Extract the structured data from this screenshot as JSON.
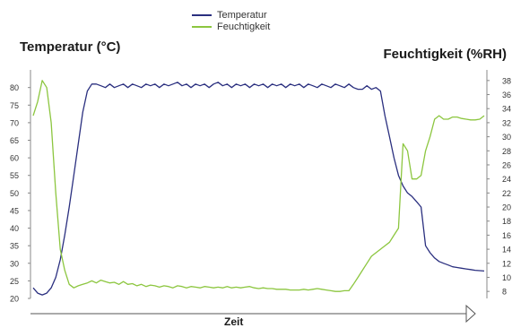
{
  "chart_data": {
    "type": "line",
    "title": "",
    "xlabel": "Zeit",
    "ylabel_left": "Temperatur (°C)",
    "ylabel_right": "Feuchtigkeit (%RH)",
    "legend_position": "top-center",
    "grid": false,
    "x_ticks_shown": false,
    "ylim_left": [
      20,
      84
    ],
    "ylim_right": [
      7,
      39
    ],
    "yticks_left": [
      "20",
      "25",
      "30",
      "35",
      "40",
      "45",
      "50",
      "55",
      "60",
      "65",
      "70",
      "75",
      "80"
    ],
    "yticks_right": [
      "8",
      "10",
      "12",
      "14",
      "16",
      "18",
      "20",
      "22",
      "24",
      "26",
      "28",
      "30",
      "32",
      "34",
      "36",
      "38"
    ],
    "series": [
      {
        "name": "Temperatur",
        "color": "#2a2f7f",
        "axis": "left",
        "x": [
          0,
          1,
          2,
          3,
          4,
          5,
          6,
          7,
          8,
          9,
          10,
          11,
          12,
          13,
          14,
          15,
          16,
          17,
          18,
          19,
          20,
          21,
          22,
          23,
          24,
          25,
          26,
          27,
          28,
          29,
          30,
          31,
          32,
          33,
          34,
          35,
          36,
          37,
          38,
          39,
          40,
          41,
          42,
          43,
          44,
          45,
          46,
          47,
          48,
          49,
          50,
          51,
          52,
          53,
          54,
          55,
          56,
          57,
          58,
          59,
          60,
          61,
          62,
          63,
          64,
          65,
          66,
          67,
          68,
          69,
          70,
          71,
          72,
          73,
          74,
          75,
          76,
          77,
          78,
          79,
          80,
          81,
          82,
          83,
          84,
          85,
          86,
          87,
          88,
          89,
          90,
          91,
          92,
          93,
          94,
          95,
          96,
          97,
          98,
          99,
          100
        ],
        "values": [
          23,
          21.5,
          21,
          21.5,
          23,
          26,
          31,
          38,
          46,
          55,
          64,
          73,
          79,
          81,
          81,
          80.5,
          80,
          81,
          80,
          80.5,
          81,
          80,
          81,
          80.5,
          80,
          81,
          80.5,
          81,
          80,
          81,
          80.5,
          81,
          81.5,
          80.5,
          81,
          80,
          81,
          80.5,
          81,
          80,
          81,
          81.5,
          80.5,
          81,
          80,
          81,
          80.5,
          81,
          80,
          81,
          80.5,
          81,
          80,
          81,
          80.5,
          81,
          80,
          81,
          80.5,
          81,
          80,
          81,
          80.5,
          80,
          81,
          80.5,
          80,
          81,
          80.5,
          80,
          81,
          80,
          79.5,
          79.5,
          80.5,
          79.5,
          80,
          79,
          72,
          66,
          60,
          55,
          52,
          50,
          49,
          47.5,
          46,
          35,
          33,
          31.5,
          30.5,
          30,
          29.5,
          29,
          28.8,
          28.6,
          28.4,
          28.2,
          28,
          27.9,
          27.8
        ]
      },
      {
        "name": "Feuchtigkeit",
        "color": "#8cc63f",
        "axis": "right",
        "x": [
          0,
          1,
          2,
          3,
          4,
          5,
          6,
          7,
          8,
          9,
          10,
          11,
          12,
          13,
          14,
          15,
          16,
          17,
          18,
          19,
          20,
          21,
          22,
          23,
          24,
          25,
          26,
          27,
          28,
          29,
          30,
          31,
          32,
          33,
          34,
          35,
          36,
          37,
          38,
          39,
          40,
          41,
          42,
          43,
          44,
          45,
          46,
          47,
          48,
          49,
          50,
          51,
          52,
          53,
          54,
          55,
          56,
          57,
          58,
          59,
          60,
          61,
          62,
          63,
          64,
          65,
          66,
          67,
          68,
          69,
          70,
          71,
          72,
          73,
          74,
          75,
          76,
          77,
          78,
          79,
          80,
          81,
          82,
          83,
          84,
          85,
          86,
          87,
          88,
          89,
          90,
          91,
          92,
          93,
          94,
          95,
          96,
          97,
          98,
          99,
          100
        ],
        "values": [
          33,
          35,
          38,
          37,
          32,
          22,
          14,
          11,
          9,
          8.5,
          8.8,
          9,
          9.2,
          9.5,
          9.2,
          9.6,
          9.4,
          9.2,
          9.3,
          9,
          9.4,
          9,
          9.1,
          8.8,
          9,
          8.7,
          8.9,
          8.8,
          8.6,
          8.8,
          8.7,
          8.5,
          8.8,
          8.7,
          8.5,
          8.7,
          8.6,
          8.5,
          8.7,
          8.6,
          8.5,
          8.6,
          8.5,
          8.7,
          8.5,
          8.6,
          8.5,
          8.6,
          8.7,
          8.5,
          8.4,
          8.5,
          8.4,
          8.4,
          8.3,
          8.3,
          8.3,
          8.2,
          8.2,
          8.2,
          8.3,
          8.2,
          8.3,
          8.4,
          8.3,
          8.2,
          8.1,
          8,
          8,
          8.1,
          8.1,
          9,
          10,
          11,
          12,
          13,
          13.5,
          14,
          14.5,
          15,
          16,
          17,
          29,
          28,
          24,
          24,
          24.5,
          28,
          30,
          32.5,
          33,
          32.5,
          32.5,
          32.8,
          32.8,
          32.6,
          32.5,
          32.4,
          32.4,
          32.5,
          33
        ]
      }
    ]
  }
}
